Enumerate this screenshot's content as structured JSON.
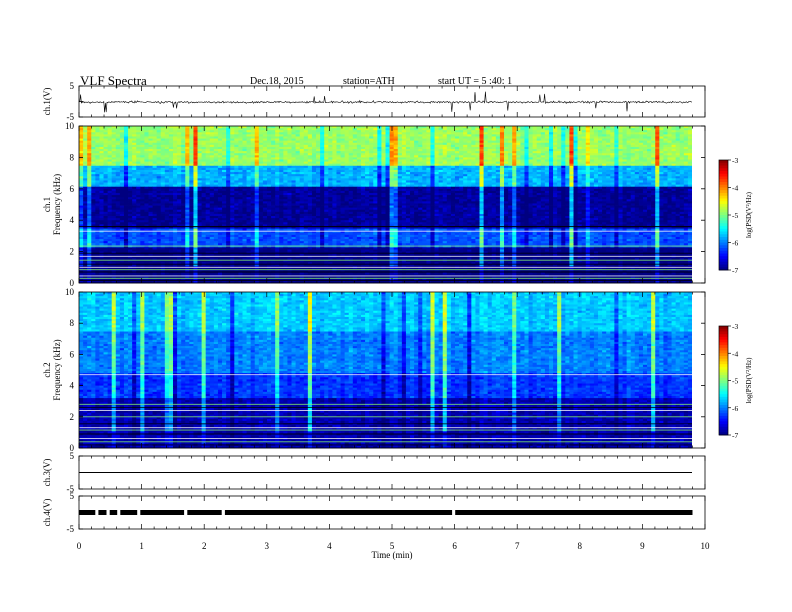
{
  "header": {
    "title": "VLF Spectra",
    "date": "Dec.18, 2015",
    "station": "station=ATH",
    "start": "start UT = 5 :40: 1"
  },
  "chart_data": [
    {
      "type": "line",
      "name": "ch1-waveform",
      "ylabel": "ch.1(V)",
      "ylim": [
        -5,
        5
      ],
      "yticks": [
        "5",
        "-5"
      ],
      "baseline": 0,
      "xlim": [
        0,
        10
      ]
    },
    {
      "type": "heatmap",
      "name": "ch1-spectrogram",
      "ylabel": "ch.1 Frequency (kHz)",
      "ylim": [
        0,
        10
      ],
      "yticks": [
        "0",
        "2",
        "4",
        "6",
        "8",
        "10"
      ],
      "xlim": [
        0,
        9.8
      ],
      "colorbar": {
        "label": "log(PSD(V²/Hz)",
        "ticks": [
          "-3",
          "-4",
          "-5",
          "-6",
          "-7"
        ],
        "range": [
          -7,
          -3
        ]
      },
      "bands": [
        {
          "from": 0,
          "to": 2.2,
          "level": -7.0
        },
        {
          "from": 2.2,
          "to": 3.5,
          "level": -6.2
        },
        {
          "from": 3.5,
          "to": 6.2,
          "level": -6.9
        },
        {
          "from": 6.2,
          "to": 7.5,
          "level": -5.8
        },
        {
          "from": 7.5,
          "to": 10,
          "level": -4.9
        }
      ]
    },
    {
      "type": "heatmap",
      "name": "ch2-spectrogram",
      "ylabel": "ch.2 Frequency (kHz)",
      "ylim": [
        0,
        10
      ],
      "yticks": [
        "0",
        "2",
        "4",
        "6",
        "8",
        "10"
      ],
      "xlim": [
        0,
        9.8
      ],
      "colorbar": {
        "label": "log(PSD(V²/Hz)",
        "ticks": [
          "-3",
          "-4",
          "-5",
          "-6",
          "-7"
        ],
        "range": [
          -7,
          -3
        ]
      },
      "bands": [
        {
          "from": 0,
          "to": 3.2,
          "level": -6.8
        },
        {
          "from": 3.2,
          "to": 4.8,
          "level": -6.3
        },
        {
          "from": 4.8,
          "to": 7.5,
          "level": -6.0
        },
        {
          "from": 7.5,
          "to": 10,
          "level": -5.7
        }
      ]
    },
    {
      "type": "line",
      "name": "ch3-waveform",
      "ylabel": "ch.3(V)",
      "ylim": [
        -5,
        5
      ],
      "yticks": [
        "5",
        "-5"
      ],
      "baseline": 0
    },
    {
      "type": "line",
      "name": "ch4-waveform",
      "ylabel": "ch.4(V)",
      "ylim": [
        -5,
        5
      ],
      "yticks": [
        "5",
        "-5"
      ],
      "baseline": 0,
      "gaps": [
        0.3,
        0.48,
        0.65,
        0.97,
        1.72,
        2.32,
        6.0
      ]
    }
  ],
  "x_axis": {
    "label": "Time (min)",
    "ticks": [
      "0",
      "1",
      "2",
      "3",
      "4",
      "5",
      "6",
      "7",
      "8",
      "9",
      "10"
    ],
    "range": [
      0,
      10
    ]
  }
}
